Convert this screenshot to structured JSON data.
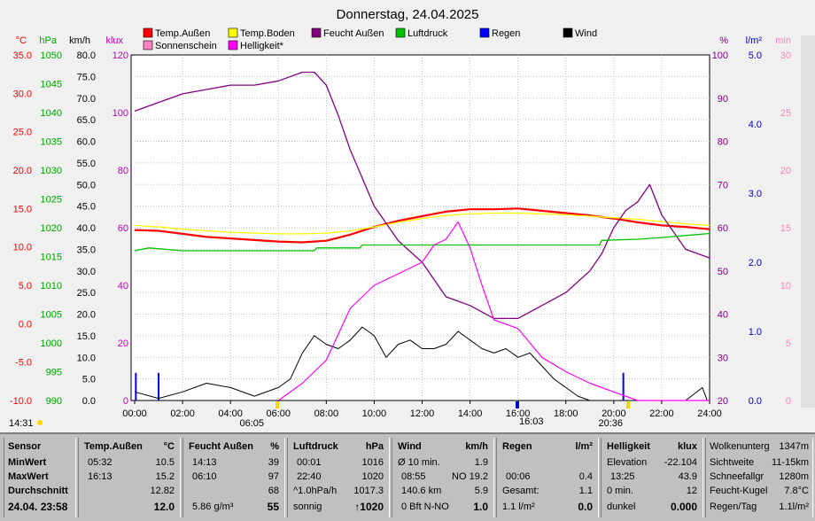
{
  "chart_data": {
    "type": "line",
    "title": "Donnerstag, 24.04.2025",
    "x_ticks": [
      "00:00",
      "02:00",
      "04:00",
      "06:00",
      "08:00",
      "10:00",
      "12:00",
      "14:00",
      "16:00",
      "18:00",
      "20:00",
      "22:00",
      "24:00"
    ],
    "left_axes": [
      {
        "unit": "°C",
        "color": "#ff0000",
        "ticks": [
          "35.0",
          "30.0",
          "25.0",
          "20.0",
          "15.0",
          "10.0",
          "5.0",
          "0.0",
          "-5.0",
          "-10.0"
        ]
      },
      {
        "unit": "hPa",
        "color": "#00a000",
        "ticks": [
          "1050",
          "1045",
          "1040",
          "1035",
          "1030",
          "1025",
          "1020",
          "1015",
          "1010",
          "1005",
          "1000",
          "995",
          "990"
        ]
      },
      {
        "unit": "km/h",
        "color": "#000000",
        "ticks": [
          "80.0",
          "75.0",
          "70.0",
          "65.0",
          "60.0",
          "55.0",
          "50.0",
          "45.0",
          "40.0",
          "35.0",
          "30.0",
          "25.0",
          "20.0",
          "15.0",
          "10.0",
          "5.0",
          "0.0"
        ]
      },
      {
        "unit": "klux",
        "color": "#c000c0",
        "ticks": [
          "120",
          "100",
          "80",
          "60",
          "40",
          "20",
          "0"
        ]
      }
    ],
    "right_axes": [
      {
        "unit": "%",
        "color": "#800080",
        "ticks": [
          "100",
          "90",
          "80",
          "70",
          "60",
          "50",
          "40",
          "30",
          "20"
        ]
      },
      {
        "unit": "l/m²",
        "color": "#0000c0",
        "ticks": [
          "5.0",
          "4.0",
          "3.0",
          "2.0",
          "1.0",
          "0.0"
        ]
      },
      {
        "unit": "min",
        "color": "#ff80c0",
        "ticks": [
          "30",
          "25",
          "20",
          "15",
          "10",
          "5",
          "0"
        ]
      }
    ],
    "legend": [
      {
        "name": "Temp.Außen",
        "color": "#ff0000"
      },
      {
        "name": "Temp.Boden",
        "color": "#ffff00"
      },
      {
        "name": "Feucht Außen",
        "color": "#800080"
      },
      {
        "name": "Luftdruck",
        "color": "#00c000"
      },
      {
        "name": "Regen",
        "color": "#0000ff"
      },
      {
        "name": "Wind",
        "color": "#000000"
      },
      {
        "name": "Sonnenschein",
        "color": "#ff80c0"
      },
      {
        "name": "Helligkeit*",
        "color": "#ff00ff"
      }
    ],
    "series": [
      {
        "name": "Temp.Außen",
        "unit": "°C",
        "x": [
          0,
          1,
          2,
          3,
          4,
          5,
          6,
          7,
          8,
          9,
          10,
          11,
          12,
          13,
          14,
          15,
          16,
          17,
          18,
          19,
          20,
          21,
          22,
          23,
          24
        ],
        "values": [
          12.2,
          12.1,
          11.7,
          11.3,
          11.1,
          10.9,
          10.7,
          10.6,
          10.8,
          11.6,
          12.6,
          13.4,
          14.0,
          14.6,
          14.9,
          14.9,
          15.0,
          14.7,
          14.4,
          14.1,
          13.7,
          13.2,
          12.8,
          12.6,
          12.3
        ]
      },
      {
        "name": "Temp.Boden",
        "unit": "°C",
        "x": [
          0,
          1,
          2,
          3,
          4,
          5,
          6,
          7,
          8,
          9,
          10,
          11,
          12,
          13,
          14,
          15,
          16,
          17,
          18,
          19,
          20,
          21,
          22,
          23,
          24
        ],
        "values": [
          12.8,
          12.6,
          12.3,
          12.1,
          11.9,
          11.8,
          11.7,
          11.7,
          11.8,
          12.1,
          12.6,
          13.2,
          13.7,
          14.1,
          14.3,
          14.4,
          14.4,
          14.3,
          14.2,
          14.0,
          13.8,
          13.6,
          13.3,
          13.0,
          12.8
        ]
      },
      {
        "name": "Feucht Außen",
        "unit": "%",
        "x": [
          0,
          0.5,
          1,
          2,
          3,
          4,
          5,
          6,
          7,
          7.5,
          8,
          8.5,
          9,
          10,
          11,
          12,
          13,
          14,
          15,
          16,
          17,
          18,
          19,
          19.5,
          20,
          20.5,
          21,
          21.5,
          22,
          22.5,
          23,
          24
        ],
        "values": [
          87,
          88,
          89,
          91,
          92,
          93,
          93,
          94,
          96,
          96,
          93,
          86,
          78,
          65,
          57,
          52,
          44,
          42,
          39,
          39,
          42,
          45,
          50,
          54,
          60,
          64,
          66,
          70,
          63,
          59,
          55,
          53
        ]
      },
      {
        "name": "Luftdruck",
        "unit": "hPa",
        "x": [
          0,
          0.6,
          2,
          4,
          6,
          7.5,
          7.6,
          9.4,
          9.5,
          12,
          19.4,
          19.5,
          21,
          22,
          24
        ],
        "values": [
          1016,
          1016.5,
          1016,
          1016,
          1016,
          1016,
          1016.5,
          1016.5,
          1017,
          1017,
          1017,
          1017.8,
          1018,
          1018.3,
          1019
        ]
      },
      {
        "name": "Regen",
        "unit": "l/m²",
        "x": [
          0.05,
          1.0,
          20.4
        ],
        "values": [
          0.4,
          0.4,
          0.4
        ]
      },
      {
        "name": "Wind",
        "unit": "km/h",
        "x": [
          0,
          1,
          2,
          3,
          4,
          5,
          6,
          6.5,
          7,
          7.5,
          8,
          8.5,
          9,
          9.5,
          10,
          10.5,
          11,
          11.5,
          12,
          12.5,
          13,
          13.5,
          14,
          14.5,
          15,
          15.5,
          16,
          16.5,
          17,
          17.5,
          18,
          18.5,
          19,
          20,
          21,
          22,
          23,
          23.7,
          23.9
        ],
        "values": [
          2,
          0.5,
          2,
          4,
          3,
          1,
          3,
          5,
          11,
          15,
          13,
          12,
          14,
          17,
          15,
          10,
          13,
          14,
          12,
          12,
          13,
          16,
          14,
          12,
          11,
          12,
          10,
          11,
          8,
          5,
          3,
          1,
          0,
          0,
          0,
          0,
          0,
          3,
          0
        ]
      },
      {
        "name": "Helligkeit*",
        "unit": "klux",
        "x": [
          6,
          7,
          8,
          9,
          10,
          11,
          12,
          12.5,
          13,
          13.5,
          14,
          14.5,
          15,
          16,
          17,
          18,
          19,
          20,
          21,
          22,
          23,
          24
        ],
        "values": [
          0,
          6,
          14,
          32,
          40,
          44,
          48,
          54,
          56,
          62,
          53,
          40,
          28,
          25,
          15,
          10,
          6,
          3,
          0,
          0,
          0,
          0
        ]
      }
    ],
    "markers": [
      {
        "label": "14:31",
        "kind": "moonrise"
      },
      {
        "label": "06:05",
        "kind": "sunrise"
      },
      {
        "label": "16:03",
        "kind": "solar-noon"
      },
      {
        "label": "20:36",
        "kind": "sunset"
      }
    ]
  },
  "stats": {
    "sensor": {
      "title": "Sensor",
      "min": "MinWert",
      "max": "MaxWert",
      "avg": "Durchschnitt",
      "date": "24.04. 23:58"
    },
    "temp": {
      "title": "Temp.Außen",
      "unit": "°C",
      "min_time": "05:32",
      "min_val": "10.5",
      "max_time": "16:13",
      "max_val": "15.2",
      "avg": "12.82",
      "current": "12.0"
    },
    "feucht": {
      "title": "Feucht Außen",
      "unit": "%",
      "min_time": "14:13",
      "min_val": "39",
      "max_time": "06:10",
      "max_val": "97",
      "avg": "68",
      "abs": "5.86 g/m³",
      "current": "55"
    },
    "druck": {
      "title": "Luftdruck",
      "unit": "hPa",
      "min_time": "00:01",
      "min_val": "1016",
      "max_time": "22:40",
      "max_val": "1020",
      "trend": "^1.0hPa/h",
      "trend_val": "1017.3",
      "forecast": "sonnig",
      "current": "↑1020"
    },
    "wind": {
      "title": "Wind",
      "unit": "km/h",
      "r1_a": "Ø 10 min.",
      "r1_b": "1.9",
      "r2_a": "08:55",
      "r2_b": "NO 19.2",
      "r3_a": "140.6 km",
      "r3_b": "5.9",
      "r4_a": "0 Bft N-NO",
      "r4_b": "1.0"
    },
    "regen": {
      "title": "Regen",
      "unit": "l/m²",
      "r2_a": "00:06",
      "r2_b": "0.4",
      "r3_a": "Gesamt:",
      "r3_b": "1.1",
      "r4_a": "1.1 l/m²",
      "r4_b": "0.0"
    },
    "hell": {
      "title": "Helligkeit",
      "unit": "klux",
      "r1_a": "Elevation",
      "r1_b": "-22.104",
      "r2_a": "13:25",
      "r2_b": "43.9",
      "r3_a": "0 min.",
      "r3_b": "12",
      "r4_a": "dunkel",
      "r4_b": "0.000"
    },
    "extra": {
      "r0_a": "Wolkenunterg",
      "r0_b": "1347m",
      "r1_a": "Sichtweite",
      "r1_b": "11-15km",
      "r2_a": "Schneefallgr",
      "r2_b": "1280m",
      "r3_a": "Feucht-Kugel",
      "r3_b": "7.8°C",
      "r4_a": "Regen/Tag",
      "r4_b": "1.1l/m²"
    }
  }
}
